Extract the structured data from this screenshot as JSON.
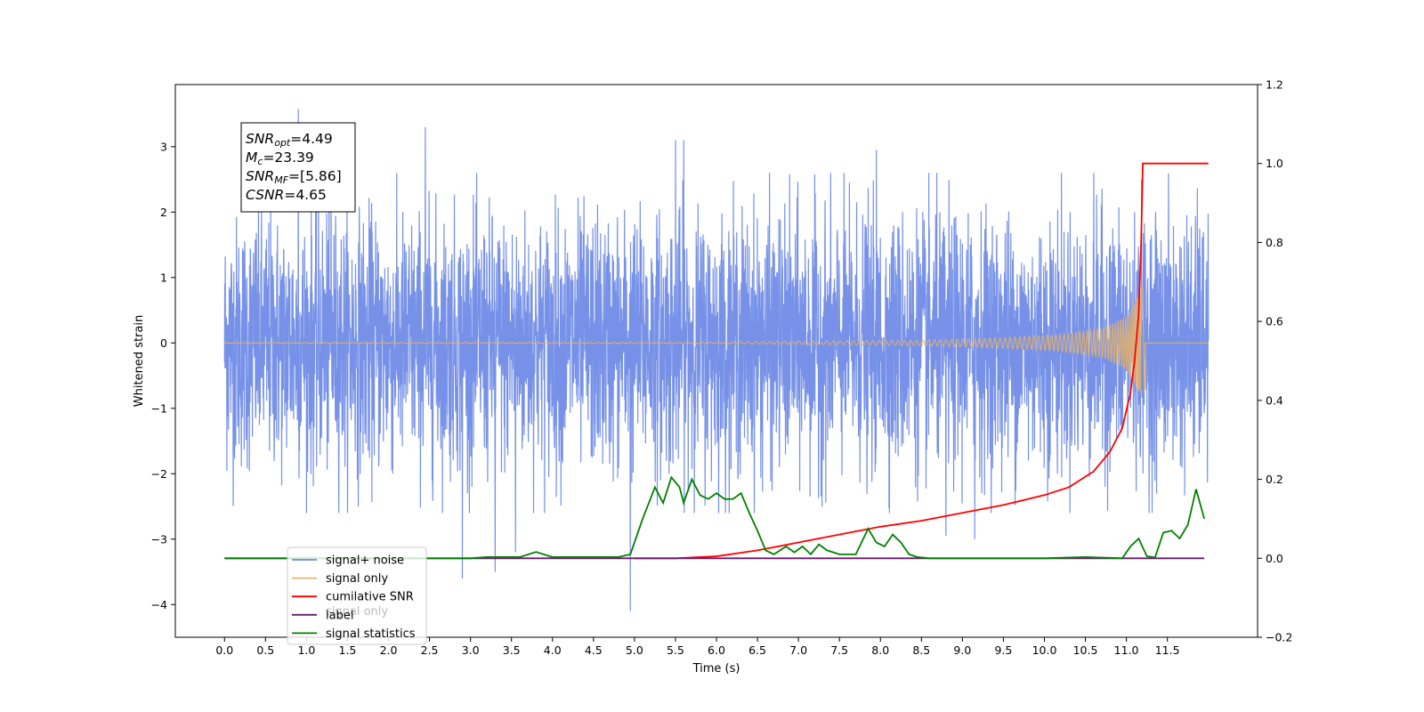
{
  "chart_data": {
    "type": "line",
    "xlabel": "Time (s)",
    "ylabel": "Whitened strain",
    "y2label": "",
    "xlim": [
      -0.6,
      12.6
    ],
    "ylim": [
      -4.5,
      3.95
    ],
    "y2lim": [
      -0.2,
      1.2
    ],
    "x_ticks": [
      "0.0",
      "0.5",
      "1.0",
      "1.5",
      "2.0",
      "2.5",
      "3.0",
      "3.5",
      "4.0",
      "4.5",
      "5.0",
      "5.5",
      "6.0",
      "6.5",
      "7.0",
      "7.5",
      "8.0",
      "8.5",
      "9.0",
      "9.5",
      "10.0",
      "10.5",
      "11.0",
      "11.5"
    ],
    "y_ticks": [
      "−4",
      "−3",
      "−2",
      "−1",
      "0",
      "1",
      "2",
      "3"
    ],
    "y2_ticks": [
      "−0.2",
      "0.0",
      "0.2",
      "0.4",
      "0.6",
      "0.8",
      "1.0",
      "1.2"
    ],
    "grid": false,
    "legend_position": "lower-left",
    "legend": [
      "signal+ noise",
      "signal only",
      "cumilative SNR",
      "label",
      "signal statistics"
    ],
    "legend_overlap_text": "signal only",
    "series": [
      {
        "name": "signal+ noise",
        "axis": "left",
        "color": "#6f8be6",
        "description": "whitened noise with signal, amplitude approx ±1.5 to ±3.5 from 0 to 12 s",
        "spikes": [
          [
            0.9,
            3.58
          ],
          [
            2.45,
            3.3
          ],
          [
            5.5,
            3.1
          ],
          [
            5.6,
            3.1
          ],
          [
            7.95,
            2.95
          ],
          [
            1.3,
            2.8
          ],
          [
            2.9,
            -3.6
          ],
          [
            3.3,
            -3.5
          ],
          [
            4.95,
            -4.1
          ],
          [
            3.55,
            -3.2
          ],
          [
            9.15,
            -3.0
          ],
          [
            8.8,
            -2.95
          ]
        ]
      },
      {
        "name": "signal only",
        "axis": "left",
        "color": "#e8b36a",
        "description": "chirp signal near zero, growing after 8.5 s, merger peak at 11.2 s",
        "envelope": [
          [
            0,
            0.005
          ],
          [
            6,
            0.01
          ],
          [
            8.5,
            0.04
          ],
          [
            9.5,
            0.08
          ],
          [
            10.2,
            0.13
          ],
          [
            10.7,
            0.22
          ],
          [
            11.0,
            0.4
          ],
          [
            11.15,
            0.75
          ],
          [
            11.2,
            0.85
          ],
          [
            11.22,
            -0.8
          ],
          [
            11.25,
            0.0
          ]
        ]
      },
      {
        "name": "cumilative SNR",
        "axis": "right",
        "color": "#ff0000",
        "x": [
          5.0,
          5.5,
          6.0,
          6.5,
          7.0,
          7.5,
          8.0,
          8.5,
          9.0,
          9.5,
          10.0,
          10.3,
          10.6,
          10.8,
          10.95,
          11.05,
          11.1,
          11.15,
          11.18,
          11.2,
          11.3,
          11.5,
          11.75,
          12.0
        ],
        "y": [
          0.0,
          0.0,
          0.005,
          0.02,
          0.04,
          0.06,
          0.08,
          0.095,
          0.115,
          0.135,
          0.16,
          0.18,
          0.22,
          0.27,
          0.33,
          0.42,
          0.5,
          0.62,
          0.8,
          1.0,
          1.0,
          1.0,
          1.0,
          1.0
        ]
      },
      {
        "name": "label",
        "axis": "right",
        "color": "#6a1b6a",
        "x": [
          0.0,
          11.95
        ],
        "y": [
          0.0,
          0.0
        ]
      },
      {
        "name": "signal statistics",
        "axis": "right",
        "color": "#008000",
        "x": [
          0.0,
          1.0,
          2.0,
          2.5,
          3.0,
          3.2,
          3.4,
          3.6,
          3.8,
          4.0,
          4.2,
          4.5,
          4.8,
          4.95,
          5.0,
          5.1,
          5.25,
          5.35,
          5.45,
          5.55,
          5.6,
          5.7,
          5.8,
          5.9,
          6.0,
          6.1,
          6.2,
          6.3,
          6.4,
          6.5,
          6.6,
          6.7,
          6.85,
          6.95,
          7.05,
          7.15,
          7.25,
          7.35,
          7.5,
          7.7,
          7.85,
          7.95,
          8.05,
          8.15,
          8.25,
          8.35,
          8.45,
          8.6,
          9.0,
          9.5,
          10.0,
          10.5,
          10.95,
          11.05,
          11.15,
          11.25,
          11.35,
          11.45,
          11.55,
          11.65,
          11.75,
          11.85,
          11.95
        ],
        "y": [
          0.0,
          0.0,
          0.0,
          0.0,
          0.0,
          0.003,
          0.003,
          0.003,
          0.016,
          0.003,
          0.003,
          0.003,
          0.003,
          0.01,
          0.04,
          0.1,
          0.18,
          0.14,
          0.205,
          0.18,
          0.14,
          0.2,
          0.16,
          0.15,
          0.165,
          0.15,
          0.15,
          0.165,
          0.115,
          0.07,
          0.02,
          0.01,
          0.03,
          0.015,
          0.03,
          0.01,
          0.035,
          0.02,
          0.01,
          0.01,
          0.075,
          0.04,
          0.03,
          0.06,
          0.04,
          0.01,
          0.003,
          0.0,
          0.0,
          0.0,
          0.0,
          0.003,
          0.0,
          0.03,
          0.05,
          0.005,
          0.002,
          0.065,
          0.07,
          0.05,
          0.085,
          0.175,
          0.1
        ]
      }
    ],
    "stats_box": [
      {
        "main": "SNR",
        "sub": "opt",
        "value": "=4.49"
      },
      {
        "main": "M",
        "sub": "c",
        "value": "=23.39"
      },
      {
        "main": "SNR",
        "sub": "MF",
        "value": "=[5.86]"
      },
      {
        "main": "CSNR",
        "sub": "",
        "value": "=4.65"
      }
    ]
  }
}
